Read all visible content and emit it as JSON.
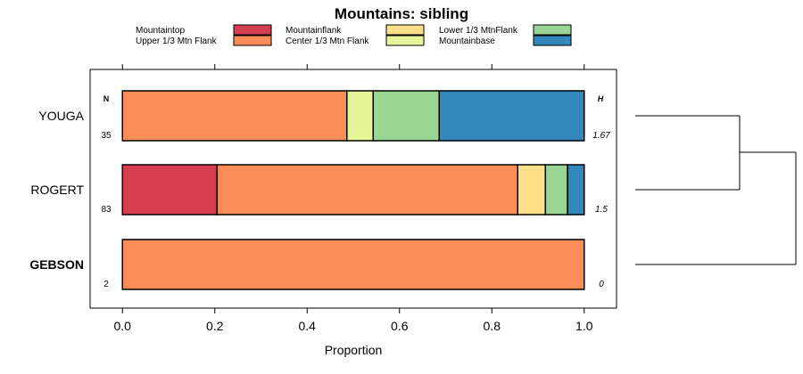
{
  "chart_data": {
    "type": "bar",
    "orientation": "horizontal",
    "stacked": true,
    "title": "Mountains: sibling",
    "xlabel": "Proportion",
    "xlim": [
      -0.07,
      1.07
    ],
    "xticks": [
      "0.0",
      "0.2",
      "0.4",
      "0.6",
      "0.8",
      "1.0"
    ],
    "xtick_values": [
      0,
      0.2,
      0.4,
      0.6,
      0.8,
      1.0
    ],
    "n_header": "N",
    "h_header": "H",
    "categories": [
      {
        "name": "YOUGA",
        "n": "35",
        "h": "1.67",
        "bold": false
      },
      {
        "name": "ROGERT",
        "n": "83",
        "h": "1.5",
        "bold": false
      },
      {
        "name": "GEBSON",
        "n": "2",
        "h": "0",
        "bold": true
      }
    ],
    "series": [
      {
        "name": "Mountaintop",
        "color": "#d53e4f",
        "values": [
          0.0,
          0.205,
          0.0
        ]
      },
      {
        "name": "Upper 1/3 Mtn Flank",
        "color": "#fc8d59",
        "values": [
          0.486,
          0.651,
          1.0
        ]
      },
      {
        "name": "Mountainflank",
        "color": "#fee08b",
        "values": [
          0.0,
          0.06,
          0.0
        ]
      },
      {
        "name": "Center 1/3 Mtn Flank",
        "color": "#e6f598",
        "values": [
          0.057,
          0.0,
          0.0
        ]
      },
      {
        "name": "Lower 1/3 MtnFlank",
        "color": "#99d594",
        "values": [
          0.143,
          0.048,
          0.0
        ]
      },
      {
        "name": "Mountainbase",
        "color": "#3288bd",
        "values": [
          0.314,
          0.036,
          0.0
        ]
      }
    ],
    "legend": "top",
    "dendrogram": "right"
  }
}
